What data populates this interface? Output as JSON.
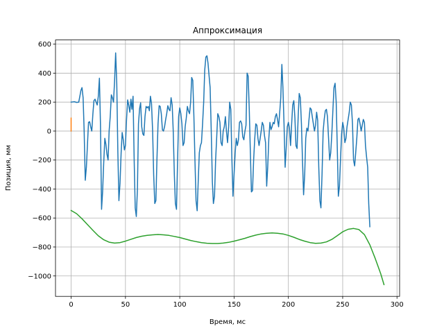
{
  "chart_data": {
    "type": "line",
    "title": "Аппроксимация",
    "xlabel": "Время, мс",
    "ylabel": "Позиция, мм",
    "xlim": [
      -14.4,
      302.4
    ],
    "ylim": [
      -1141,
      629
    ],
    "grid": true,
    "x_ticks": [
      0,
      50,
      100,
      150,
      200,
      250,
      300
    ],
    "y_ticks": [
      -1000,
      -800,
      -600,
      -400,
      -200,
      0,
      200,
      400,
      600
    ],
    "series": [
      {
        "color": "#1f77b4",
        "points": [
          [
            0,
            200
          ],
          [
            3,
            203
          ],
          [
            5,
            198
          ],
          [
            7,
            200
          ],
          [
            8,
            240
          ],
          [
            9,
            280
          ],
          [
            10,
            300
          ],
          [
            11,
            230
          ],
          [
            12,
            0
          ],
          [
            13,
            -340
          ],
          [
            14,
            -250
          ],
          [
            15,
            -100
          ],
          [
            16,
            60
          ],
          [
            17,
            65
          ],
          [
            18,
            30
          ],
          [
            19,
            0
          ],
          [
            20,
            120
          ],
          [
            21,
            210
          ],
          [
            22,
            220
          ],
          [
            23,
            200
          ],
          [
            24,
            180
          ],
          [
            25,
            240
          ],
          [
            26,
            365
          ],
          [
            27,
            50
          ],
          [
            28,
            -540
          ],
          [
            29,
            -420
          ],
          [
            30,
            -220
          ],
          [
            31,
            -50
          ],
          [
            32,
            -90
          ],
          [
            33,
            -160
          ],
          [
            34,
            -200
          ],
          [
            35,
            0
          ],
          [
            36,
            100
          ],
          [
            37,
            250
          ],
          [
            38,
            230
          ],
          [
            39,
            200
          ],
          [
            40,
            350
          ],
          [
            41,
            540
          ],
          [
            42,
            330
          ],
          [
            43,
            -150
          ],
          [
            44,
            -480
          ],
          [
            45,
            -360
          ],
          [
            46,
            -150
          ],
          [
            47,
            -10
          ],
          [
            48,
            -60
          ],
          [
            49,
            -130
          ],
          [
            50,
            -100
          ],
          [
            51,
            80
          ],
          [
            52,
            215
          ],
          [
            53,
            180
          ],
          [
            54,
            130
          ],
          [
            55,
            220
          ],
          [
            56,
            150
          ],
          [
            57,
            240
          ],
          [
            58,
            -200
          ],
          [
            59,
            -530
          ],
          [
            60,
            -590
          ],
          [
            61,
            -400
          ],
          [
            62,
            50
          ],
          [
            63,
            155
          ],
          [
            64,
            195
          ],
          [
            65,
            30
          ],
          [
            66,
            -20
          ],
          [
            67,
            -30
          ],
          [
            68,
            100
          ],
          [
            69,
            170
          ],
          [
            70,
            160
          ],
          [
            71,
            170
          ],
          [
            72,
            140
          ],
          [
            73,
            240
          ],
          [
            74,
            190
          ],
          [
            75,
            0
          ],
          [
            76,
            -300
          ],
          [
            77,
            -500
          ],
          [
            78,
            -480
          ],
          [
            79,
            -200
          ],
          [
            80,
            50
          ],
          [
            81,
            175
          ],
          [
            82,
            170
          ],
          [
            83,
            120
          ],
          [
            84,
            10
          ],
          [
            85,
            0
          ],
          [
            86,
            30
          ],
          [
            87,
            80
          ],
          [
            88,
            120
          ],
          [
            89,
            175
          ],
          [
            90,
            150
          ],
          [
            91,
            140
          ],
          [
            92,
            230
          ],
          [
            93,
            180
          ],
          [
            94,
            0
          ],
          [
            95,
            -300
          ],
          [
            96,
            -500
          ],
          [
            97,
            -540
          ],
          [
            98,
            -200
          ],
          [
            99,
            100
          ],
          [
            100,
            160
          ],
          [
            101,
            120
          ],
          [
            102,
            50
          ],
          [
            103,
            -100
          ],
          [
            104,
            -80
          ],
          [
            105,
            30
          ],
          [
            106,
            90
          ],
          [
            107,
            170
          ],
          [
            108,
            140
          ],
          [
            109,
            120
          ],
          [
            110,
            200
          ],
          [
            111,
            370
          ],
          [
            112,
            350
          ],
          [
            113,
            100
          ],
          [
            114,
            -200
          ],
          [
            115,
            -480
          ],
          [
            116,
            -550
          ],
          [
            117,
            -350
          ],
          [
            118,
            -150
          ],
          [
            119,
            -100
          ],
          [
            120,
            -80
          ],
          [
            121,
            50
          ],
          [
            122,
            200
          ],
          [
            123,
            420
          ],
          [
            124,
            510
          ],
          [
            125,
            520
          ],
          [
            126,
            470
          ],
          [
            127,
            380
          ],
          [
            128,
            300
          ],
          [
            129,
            0
          ],
          [
            130,
            -350
          ],
          [
            131,
            -500
          ],
          [
            132,
            -450
          ],
          [
            133,
            -200
          ],
          [
            134,
            -50
          ],
          [
            135,
            120
          ],
          [
            136,
            100
          ],
          [
            137,
            60
          ],
          [
            138,
            -80
          ],
          [
            139,
            -100
          ],
          [
            140,
            0
          ],
          [
            141,
            30
          ],
          [
            142,
            100
          ],
          [
            143,
            0
          ],
          [
            144,
            -80
          ],
          [
            145,
            30
          ],
          [
            146,
            200
          ],
          [
            147,
            150
          ],
          [
            148,
            -200
          ],
          [
            149,
            -450
          ],
          [
            150,
            -300
          ],
          [
            151,
            -150
          ],
          [
            152,
            -50
          ],
          [
            153,
            -100
          ],
          [
            154,
            -60
          ],
          [
            155,
            60
          ],
          [
            156,
            70
          ],
          [
            157,
            50
          ],
          [
            158,
            -40
          ],
          [
            159,
            -60
          ],
          [
            160,
            0
          ],
          [
            161,
            40
          ],
          [
            162,
            400
          ],
          [
            163,
            380
          ],
          [
            164,
            150
          ],
          [
            165,
            -150
          ],
          [
            166,
            -420
          ],
          [
            167,
            -410
          ],
          [
            168,
            -200
          ],
          [
            169,
            -60
          ],
          [
            170,
            50
          ],
          [
            171,
            40
          ],
          [
            172,
            -50
          ],
          [
            173,
            -100
          ],
          [
            174,
            -50
          ],
          [
            175,
            0
          ],
          [
            176,
            60
          ],
          [
            177,
            40
          ],
          [
            178,
            -30
          ],
          [
            179,
            -80
          ],
          [
            180,
            -380
          ],
          [
            181,
            -250
          ],
          [
            182,
            -50
          ],
          [
            183,
            60
          ],
          [
            184,
            10
          ],
          [
            185,
            30
          ],
          [
            186,
            60
          ],
          [
            187,
            50
          ],
          [
            188,
            100
          ],
          [
            189,
            120
          ],
          [
            190,
            80
          ],
          [
            191,
            30
          ],
          [
            192,
            130
          ],
          [
            193,
            230
          ],
          [
            194,
            460
          ],
          [
            195,
            300
          ],
          [
            196,
            50
          ],
          [
            197,
            -250
          ],
          [
            198,
            -120
          ],
          [
            199,
            30
          ],
          [
            200,
            60
          ],
          [
            201,
            20
          ],
          [
            202,
            -100
          ],
          [
            203,
            50
          ],
          [
            204,
            180
          ],
          [
            205,
            210
          ],
          [
            206,
            90
          ],
          [
            207,
            -100
          ],
          [
            208,
            -120
          ],
          [
            209,
            100
          ],
          [
            210,
            260
          ],
          [
            211,
            230
          ],
          [
            212,
            50
          ],
          [
            213,
            -200
          ],
          [
            214,
            -440
          ],
          [
            215,
            -300
          ],
          [
            216,
            -50
          ],
          [
            217,
            20
          ],
          [
            218,
            0
          ],
          [
            219,
            80
          ],
          [
            220,
            160
          ],
          [
            221,
            150
          ],
          [
            222,
            100
          ],
          [
            223,
            50
          ],
          [
            224,
            0
          ],
          [
            225,
            40
          ],
          [
            226,
            130
          ],
          [
            227,
            75
          ],
          [
            228,
            -250
          ],
          [
            229,
            -480
          ],
          [
            230,
            -530
          ],
          [
            231,
            -300
          ],
          [
            232,
            0
          ],
          [
            233,
            80
          ],
          [
            234,
            140
          ],
          [
            235,
            150
          ],
          [
            236,
            100
          ],
          [
            237,
            -50
          ],
          [
            238,
            -200
          ],
          [
            239,
            -150
          ],
          [
            240,
            -20
          ],
          [
            241,
            150
          ],
          [
            242,
            300
          ],
          [
            243,
            330
          ],
          [
            244,
            200
          ],
          [
            245,
            -100
          ],
          [
            246,
            -450
          ],
          [
            247,
            -380
          ],
          [
            248,
            -200
          ],
          [
            249,
            -20
          ],
          [
            250,
            60
          ],
          [
            251,
            20
          ],
          [
            252,
            -80
          ],
          [
            253,
            -50
          ],
          [
            254,
            30
          ],
          [
            255,
            80
          ],
          [
            256,
            130
          ],
          [
            257,
            200
          ],
          [
            258,
            180
          ],
          [
            259,
            50
          ],
          [
            260,
            -200
          ],
          [
            261,
            -240
          ],
          [
            262,
            -150
          ],
          [
            263,
            -50
          ],
          [
            264,
            80
          ],
          [
            265,
            90
          ],
          [
            266,
            50
          ],
          [
            267,
            0
          ],
          [
            268,
            40
          ],
          [
            269,
            80
          ],
          [
            270,
            60
          ],
          [
            271,
            -100
          ],
          [
            272,
            -180
          ],
          [
            273,
            -250
          ],
          [
            274,
            -500
          ],
          [
            275,
            -660
          ]
        ]
      },
      {
        "color": "#ff7f0e",
        "points": [
          [
            0,
            0
          ],
          [
            0,
            90
          ]
        ]
      },
      {
        "color": "#2ca02c",
        "points": [
          [
            0,
            -548
          ],
          [
            5,
            -570
          ],
          [
            10,
            -605
          ],
          [
            15,
            -645
          ],
          [
            20,
            -685
          ],
          [
            25,
            -723
          ],
          [
            30,
            -750
          ],
          [
            35,
            -767
          ],
          [
            40,
            -773
          ],
          [
            45,
            -770
          ],
          [
            50,
            -760
          ],
          [
            55,
            -747
          ],
          [
            60,
            -735
          ],
          [
            65,
            -726
          ],
          [
            70,
            -720
          ],
          [
            75,
            -716
          ],
          [
            80,
            -714
          ],
          [
            85,
            -716
          ],
          [
            90,
            -720
          ],
          [
            95,
            -727
          ],
          [
            100,
            -735
          ],
          [
            105,
            -745
          ],
          [
            110,
            -755
          ],
          [
            115,
            -763
          ],
          [
            120,
            -770
          ],
          [
            125,
            -774
          ],
          [
            130,
            -776
          ],
          [
            135,
            -776
          ],
          [
            140,
            -773
          ],
          [
            145,
            -768
          ],
          [
            150,
            -760
          ],
          [
            155,
            -750
          ],
          [
            160,
            -740
          ],
          [
            165,
            -728
          ],
          [
            170,
            -718
          ],
          [
            175,
            -710
          ],
          [
            180,
            -705
          ],
          [
            185,
            -703
          ],
          [
            190,
            -705
          ],
          [
            195,
            -710
          ],
          [
            200,
            -720
          ],
          [
            205,
            -733
          ],
          [
            210,
            -748
          ],
          [
            215,
            -760
          ],
          [
            220,
            -770
          ],
          [
            225,
            -775
          ],
          [
            230,
            -773
          ],
          [
            235,
            -765
          ],
          [
            240,
            -748
          ],
          [
            245,
            -722
          ],
          [
            250,
            -695
          ],
          [
            255,
            -678
          ],
          [
            260,
            -672
          ],
          [
            265,
            -680
          ],
          [
            270,
            -715
          ],
          [
            275,
            -785
          ],
          [
            280,
            -880
          ],
          [
            285,
            -985
          ],
          [
            288,
            -1060
          ]
        ]
      }
    ]
  }
}
